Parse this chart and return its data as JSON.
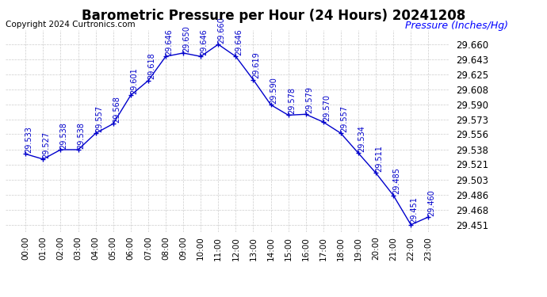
{
  "title": "Barometric Pressure per Hour (24 Hours) 20241208",
  "copyright": "Copyright 2024 Curtronics.com",
  "ylabel": "Pressure (Inches/Hg)",
  "hours": [
    "00:00",
    "01:00",
    "02:00",
    "03:00",
    "04:00",
    "05:00",
    "06:00",
    "07:00",
    "08:00",
    "09:00",
    "10:00",
    "11:00",
    "12:00",
    "13:00",
    "14:00",
    "15:00",
    "16:00",
    "17:00",
    "18:00",
    "19:00",
    "20:00",
    "21:00",
    "22:00",
    "23:00"
  ],
  "values": [
    29.533,
    29.527,
    29.538,
    29.538,
    29.557,
    29.568,
    29.601,
    29.618,
    29.646,
    29.65,
    29.646,
    29.66,
    29.646,
    29.619,
    29.59,
    29.578,
    29.579,
    29.57,
    29.557,
    29.534,
    29.511,
    29.485,
    29.451,
    29.46
  ],
  "line_color": "#0000cc",
  "marker_color": "#0000cc",
  "title_color": "#000000",
  "ylabel_color": "#0000ff",
  "copyright_color": "#000000",
  "annotation_color": "#0000cc",
  "background_color": "#ffffff",
  "grid_color": "#cccccc",
  "ytick_color": "#000000",
  "ylim_min": 29.443,
  "ylim_max": 29.677,
  "yticks": [
    29.66,
    29.643,
    29.625,
    29.608,
    29.59,
    29.573,
    29.556,
    29.538,
    29.521,
    29.503,
    29.486,
    29.468,
    29.451
  ],
  "title_fontsize": 12,
  "annotation_fontsize": 7,
  "copyright_fontsize": 7.5,
  "ylabel_fontsize": 9,
  "ytick_fontsize": 8.5,
  "xtick_fontsize": 7.5
}
